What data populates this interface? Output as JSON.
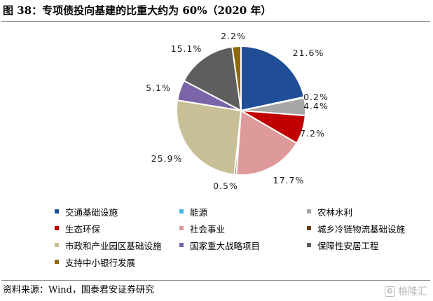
{
  "title": "图 38：专项债投向基建的比重大约为 60%（2020 年）",
  "source": "资料来源：Wind，国泰君安证券研究",
  "watermark": "格隆汇",
  "chart_data": {
    "type": "pie",
    "title": "图 38：专项债投向基建的比重大约为 60%（2020 年）",
    "start_angle_deg": 0,
    "direction": "clockwise",
    "categories": [
      "交通基础设施",
      "能源",
      "农林水利",
      "生态环保",
      "社会事业",
      "城乡冷链物流基础设施",
      "市政和产业园区基础设施",
      "国家重大战略项目",
      "保障性安居工程",
      "支持中小银行发展"
    ],
    "values": [
      21.6,
      0.2,
      4.4,
      7.2,
      17.7,
      0.5,
      25.9,
      5.1,
      15.1,
      2.2
    ],
    "labels": [
      "21.6%",
      "0.2%",
      "4.4%",
      "7.2%",
      "17.7%",
      "0.5%",
      "25.9%",
      "5.1%",
      "15.1%",
      "2.2%"
    ],
    "colors": [
      "#1f4e96",
      "#3fb6e6",
      "#a6a6a6",
      "#c00000",
      "#de9a9a",
      "#6b3a12",
      "#c8bf97",
      "#7b64a8",
      "#5e5e5e",
      "#8e6a0e"
    ],
    "legend_position": "bottom"
  }
}
